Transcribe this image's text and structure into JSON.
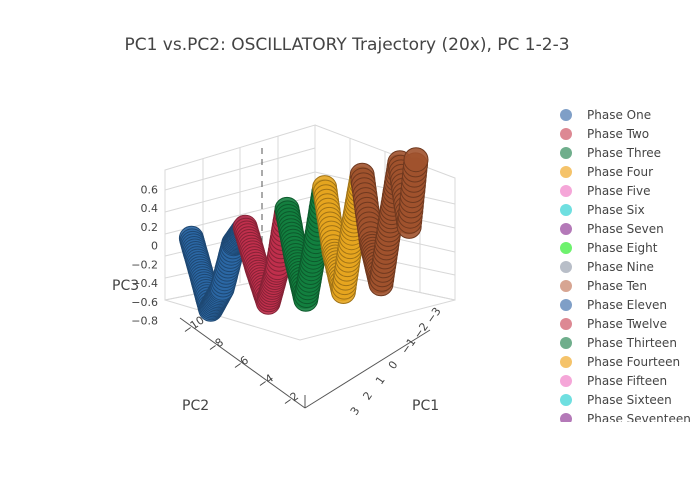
{
  "chart_data": {
    "type": "scatter",
    "title": "PC1 vs.PC2: OSCILLATORY Trajectory (20x), PC 1-2-3",
    "axes": {
      "x": {
        "title": "PC1",
        "ticks": [
          "3",
          "2",
          "1",
          "0",
          "−1",
          "−2",
          "−3"
        ],
        "range": [
          3,
          -3
        ]
      },
      "y": {
        "title": "PC2",
        "ticks": [
          "−10",
          "−8",
          "−6",
          "−4",
          "−2"
        ],
        "range": [
          -10,
          0
        ]
      },
      "z": {
        "title": "PC3",
        "ticks": [
          "−0.8",
          "−0.6",
          "−0.4",
          "−0.2",
          "0",
          "0.2",
          "0.4",
          "0.6"
        ],
        "range": [
          -0.9,
          0.7
        ]
      }
    },
    "grid": true,
    "legend_position": "right",
    "legend": [
      {
        "name": "Phase One",
        "color": "#7f9fc7"
      },
      {
        "name": "Phase Two",
        "color": "#dd8893"
      },
      {
        "name": "Phase Three",
        "color": "#6fae8c"
      },
      {
        "name": "Phase Four",
        "color": "#f5c36a"
      },
      {
        "name": "Phase Five",
        "color": "#f5a6d8"
      },
      {
        "name": "Phase Six",
        "color": "#6fdfe0"
      },
      {
        "name": "Phase Seven",
        "color": "#b479b8"
      },
      {
        "name": "Phase Eight",
        "color": "#6ef26e"
      },
      {
        "name": "Phase Nine",
        "color": "#b8bec8"
      },
      {
        "name": "Phase Ten",
        "color": "#d7a592"
      },
      {
        "name": "Phase Eleven",
        "color": "#7f9fc7"
      },
      {
        "name": "Phase Twelve",
        "color": "#dd8893"
      },
      {
        "name": "Phase Thirteen",
        "color": "#6fae8c"
      },
      {
        "name": "Phase Fourteen",
        "color": "#f5c36a"
      },
      {
        "name": "Phase Fifteen",
        "color": "#f5a6d8"
      },
      {
        "name": "Phase Sixteen",
        "color": "#6fdfe0"
      },
      {
        "name": "Phase Seventeen",
        "color": "#b479b8"
      }
    ],
    "series": [
      {
        "name": "Phase One",
        "color": "#2b67a4",
        "points": [
          [
            2.4,
            -9.6,
            0.05
          ],
          [
            2.1,
            -9.2,
            -0.35
          ],
          [
            1.9,
            -8.8,
            -0.75
          ],
          [
            1.7,
            -8.3,
            -0.55
          ],
          [
            1.5,
            -7.8,
            -0.1
          ],
          [
            1.3,
            -7.3,
            0.05
          ]
        ]
      },
      {
        "name": "Phase Two",
        "color": "#c0304d",
        "points": [
          [
            1.3,
            -7.3,
            0.05
          ],
          [
            1.1,
            -6.8,
            -0.4
          ],
          [
            0.9,
            -6.3,
            -0.8
          ],
          [
            0.7,
            -5.9,
            -0.45
          ],
          [
            0.5,
            -5.5,
            0.15
          ]
        ]
      },
      {
        "name": "Phase Three",
        "color": "#13803f",
        "points": [
          [
            0.5,
            -5.5,
            0.15
          ],
          [
            0.3,
            -5.1,
            -0.4
          ],
          [
            0.1,
            -4.7,
            -0.85
          ],
          [
            -0.1,
            -4.3,
            -0.3
          ],
          [
            -0.3,
            -3.9,
            0.3
          ]
        ]
      },
      {
        "name": "Phase Four",
        "color": "#e6a51f",
        "points": [
          [
            -0.3,
            -3.9,
            0.3
          ],
          [
            -0.5,
            -3.5,
            -0.4
          ],
          [
            -0.7,
            -3.1,
            -0.85
          ],
          [
            -0.9,
            -2.7,
            -0.2
          ],
          [
            -1.1,
            -2.3,
            0.35
          ]
        ]
      },
      {
        "name": "Phase Five",
        "color": "#a0522d",
        "points": [
          [
            -1.1,
            -2.3,
            0.35
          ],
          [
            -1.3,
            -1.9,
            -0.4
          ],
          [
            -1.5,
            -1.5,
            -0.85
          ],
          [
            -1.7,
            -1.1,
            -0.2
          ],
          [
            -1.9,
            -0.7,
            0.4
          ],
          [
            -2.1,
            -0.3,
            -0.3
          ],
          [
            -2.3,
            0.0,
            0.45
          ]
        ]
      }
    ]
  }
}
